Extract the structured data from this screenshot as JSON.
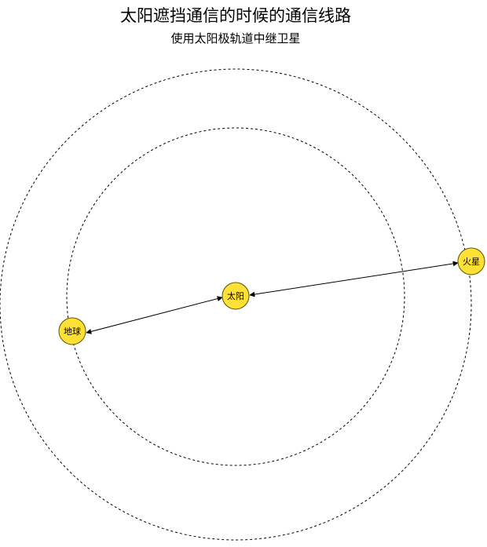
{
  "title": "太阳遮挡通信的时候的通信线路",
  "subtitle": "使用太阳极轨道中继卫星",
  "colors": {
    "body_fill": "#FFE135",
    "body_stroke": "#5a5200",
    "orbit_stroke": "#000000",
    "link_stroke": "#000000"
  },
  "nodes": {
    "sun": {
      "label": "太阳"
    },
    "earth": {
      "label": "地球"
    },
    "mars": {
      "label": "火星"
    }
  },
  "orbits": {
    "inner": {
      "style": "dashed"
    },
    "outer": {
      "style": "dashed"
    }
  },
  "links": [
    {
      "from": "sun",
      "to": "earth",
      "style": "double-arrow"
    },
    {
      "from": "sun",
      "to": "mars",
      "style": "double-arrow"
    }
  ]
}
